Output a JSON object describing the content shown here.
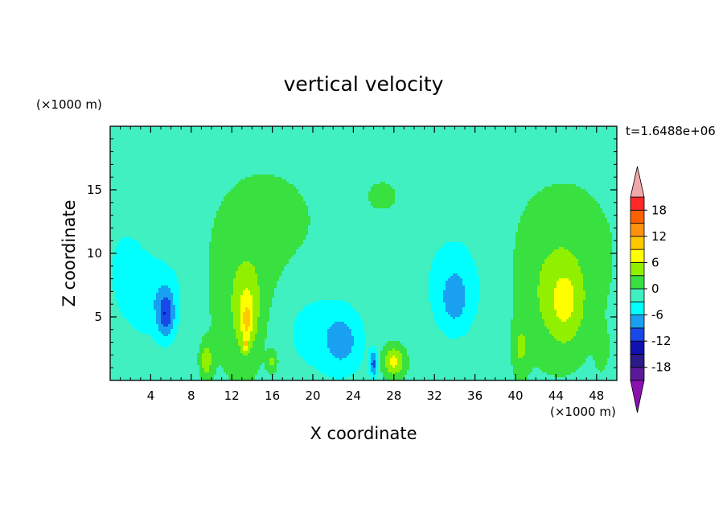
{
  "chart_data": {
    "type": "heatmap",
    "title": "vertical velocity",
    "xlabel": "X coordinate",
    "ylabel": "Z coordinate",
    "x_unit": "(×1000 m)",
    "y_unit": "(×1000 m)",
    "time_label": "t=1.6488e+06",
    "xlim": [
      0,
      50
    ],
    "ylim": [
      0,
      20
    ],
    "x_ticks": [
      4,
      8,
      12,
      16,
      20,
      24,
      28,
      32,
      36,
      40,
      44,
      48
    ],
    "y_ticks": [
      5,
      10,
      15
    ],
    "x_tick_labels": [
      "4",
      "8",
      "12",
      "16",
      "20",
      "24",
      "28",
      "32",
      "36",
      "40",
      "44",
      "48"
    ],
    "y_tick_labels": [
      "5",
      "10",
      "15"
    ],
    "colorbar": {
      "levels": [
        -21,
        -18,
        -15,
        -12,
        -9,
        -6,
        -3,
        0,
        3,
        6,
        9,
        12,
        15,
        18,
        21
      ],
      "labels": [
        "18",
        "12",
        "6",
        "0",
        "-6",
        "-12",
        "-18"
      ],
      "label_values": [
        18,
        12,
        6,
        0,
        -6,
        -12,
        -18
      ],
      "colors": [
        "#5a1a9a",
        "#2a1a8a",
        "#1010b0",
        "#1848e8",
        "#1aa0f0",
        "#00ffff",
        "#40f0c0",
        "#38e040",
        "#90f000",
        "#ffff00",
        "#ffc800",
        "#ff9010",
        "#ff6000",
        "#ff2828"
      ],
      "under_color": "#8a10b0",
      "over_color": "#f0a8a8",
      "background_color": "#22f0a0"
    },
    "features": [
      {
        "x": 4.5,
        "z": 6.5,
        "sx": 3.0,
        "sz": 3.5,
        "w": -4
      },
      {
        "x": 5.5,
        "z": 5.2,
        "sx": 0.8,
        "sz": 1.8,
        "w": -8
      },
      {
        "x": 20,
        "z": 4.0,
        "sx": 4.0,
        "sz": 4.0,
        "w": -3
      },
      {
        "x": 23,
        "z": 3.0,
        "sx": 2.0,
        "sz": 2.5,
        "w": -5
      },
      {
        "x": 34,
        "z": 7.5,
        "sx": 4.0,
        "sz": 5.5,
        "w": -3
      },
      {
        "x": 34,
        "z": 6.5,
        "sx": 1.2,
        "sz": 2.0,
        "w": -5
      },
      {
        "x": 26,
        "z": 1.3,
        "sx": 0.4,
        "sz": 1.0,
        "w": -9
      },
      {
        "x": 1.5,
        "z": 9.0,
        "sx": 2.0,
        "sz": 4.0,
        "w": -2.5
      },
      {
        "x": 16,
        "z": 12.0,
        "sx": 6.0,
        "sz": 6.0,
        "w": 1.5
      },
      {
        "x": 13,
        "z": 6.0,
        "sx": 3.0,
        "sz": 6.0,
        "w": 3
      },
      {
        "x": 13.5,
        "z": 5.5,
        "sx": 1.2,
        "sz": 3.0,
        "w": 5
      },
      {
        "x": 13.5,
        "z": 4.5,
        "sx": 0.5,
        "sz": 1.5,
        "w": 4
      },
      {
        "x": 13.3,
        "z": 2.8,
        "sx": 0.3,
        "sz": 0.6,
        "w": 6
      },
      {
        "x": 9.5,
        "z": 1.6,
        "sx": 0.6,
        "sz": 1.3,
        "w": 6
      },
      {
        "x": 16.0,
        "z": 1.5,
        "sx": 0.5,
        "sz": 0.8,
        "w": 5
      },
      {
        "x": 28,
        "z": 1.5,
        "sx": 1.1,
        "sz": 1.2,
        "w": 8
      },
      {
        "x": 27,
        "z": 14.5,
        "sx": 2.5,
        "sz": 2.0,
        "w": 1.3
      },
      {
        "x": 45,
        "z": 11.0,
        "sx": 6.0,
        "sz": 6.0,
        "w": 1.5
      },
      {
        "x": 44,
        "z": 6.5,
        "sx": 3.5,
        "sz": 5.0,
        "w": 4
      },
      {
        "x": 45,
        "z": 6.0,
        "sx": 1.6,
        "sz": 3.0,
        "w": 4
      },
      {
        "x": 40.5,
        "z": 2.5,
        "sx": 0.8,
        "sz": 2.0,
        "w": 4
      },
      {
        "x": 48.5,
        "z": 2.5,
        "sx": 0.6,
        "sz": 1.5,
        "w": 3
      }
    ]
  }
}
